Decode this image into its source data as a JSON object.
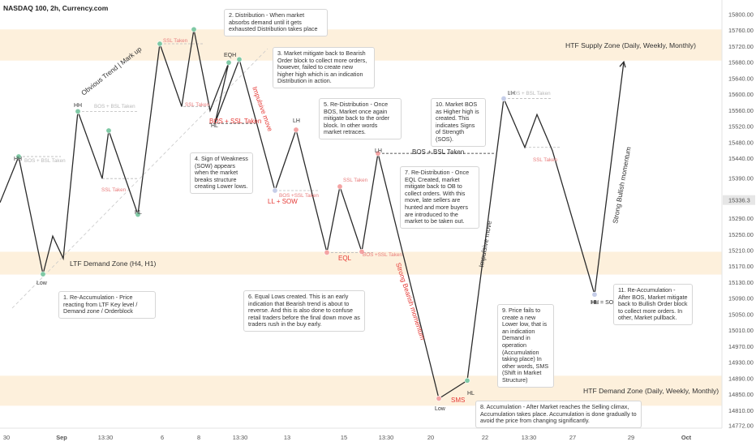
{
  "header": {
    "title": "NASDAQ 100, 2h, Currency.com"
  },
  "colors": {
    "zone_fill": "#fdf0dc",
    "line": "#2b2b2b",
    "green_point": "#7fc9a5",
    "red_point": "#f4a3a3",
    "blue_point": "#c5cde8",
    "red_text": "#e53935",
    "price_tag_bg": "#e6e6e6"
  },
  "chart_data": {
    "type": "line",
    "x_ticks": [
      "30",
      "Sep",
      "13:30",
      "6",
      "8",
      "13:30",
      "13",
      "15",
      "13:30",
      "20",
      "22",
      "13:30",
      "27",
      "29",
      "Oct"
    ],
    "y_ticks": [
      15800.0,
      15760.0,
      15720.0,
      15680.0,
      15640.0,
      15600.0,
      15560.0,
      15520.0,
      15480.0,
      15440.0,
      15390.0,
      15336.3,
      15290.0,
      15250.0,
      15210.0,
      15170.0,
      15130.0,
      15090.0,
      15050.0,
      15010.0,
      14970.0,
      14930.0,
      14890.0,
      14850.0,
      14810.0,
      14772.0
    ],
    "current_price": "15336.3",
    "series": [
      {
        "name": "",
        "points": [
          {
            "t": "30",
            "v": 15330
          },
          {
            "t": "30",
            "v": 15445
          },
          {
            "t": "30",
            "v": 15151
          },
          {
            "t": "30",
            "v": 15246
          },
          {
            "t": "Sep",
            "v": 15190
          },
          {
            "t": "Sep",
            "v": 15558
          },
          {
            "t": "Sep",
            "v": 15390
          },
          {
            "t": "Sep",
            "v": 15510
          },
          {
            "t": "13:30",
            "v": 15300
          },
          {
            "t": "6",
            "v": 15727
          },
          {
            "t": "6",
            "v": 15570
          },
          {
            "t": "8",
            "v": 15763
          },
          {
            "t": "8",
            "v": 15560
          },
          {
            "t": "8",
            "v": 15680
          },
          {
            "t": "8",
            "v": 15528
          },
          {
            "t": "13:30",
            "v": 15688
          },
          {
            "t": "13",
            "v": 15360
          },
          {
            "t": "13",
            "v": 15512
          },
          {
            "t": "15",
            "v": 15205
          },
          {
            "t": "15",
            "v": 15370
          },
          {
            "t": "13:30",
            "v": 15207
          },
          {
            "t": "13:30",
            "v": 15453
          },
          {
            "t": "20",
            "v": 14840
          },
          {
            "t": "20",
            "v": 14885
          },
          {
            "t": "22",
            "v": 15590
          },
          {
            "t": "13:30",
            "v": 15468
          },
          {
            "t": "13:30",
            "v": 15550
          },
          {
            "t": "27",
            "v": 15460
          },
          {
            "t": "27",
            "v": 15100
          },
          {
            "t": "29",
            "v": 15682
          }
        ]
      }
    ],
    "zones": [
      {
        "label": "HTF Supply Zone (Daily, Weekly, Monthly)",
        "from": 15685,
        "to": 15763
      },
      {
        "label": "LTF Demand Zone (H4, H1)",
        "from": 15150,
        "to": 15207
      },
      {
        "label": "HTF Demand Zone (Daily, Weekly, Monthly)",
        "from": 14822,
        "to": 14897
      }
    ],
    "point_labels": [
      "HH",
      "Low",
      "HH",
      "HL",
      "HL",
      "EQH",
      "LH",
      "LH",
      "LH",
      "HH = SOS",
      "HL",
      "Low",
      "HL"
    ],
    "bos_labels": [
      "BOS + SSL Taken",
      "BOS + SSL Taken",
      "LL + SOW",
      "BOS + SSL Taken",
      "SMS"
    ],
    "faint_labels": [
      "BOS + BSL Taken",
      "BOS + BSL Taken",
      "SSL Taken",
      "SSL Taken",
      "SSL Taken",
      "BOS +SSL Taken",
      "SSL Taken",
      "BOS +SSL Taken",
      "BOS + BSL Taken",
      "SSL Taken"
    ],
    "bos_bsl_label": "BOS + BSL Taken",
    "eql_label": "EQL",
    "diagonal_labels": {
      "trend": "Obvious Trend | Mark up",
      "impulsive_red": "Impulsive move",
      "impulsive": "Impulsive move",
      "strong_bearish": "Strong Bearish momentum",
      "strong_bullish": "Strong Bullish momentum"
    }
  },
  "notes": [
    "1. Re-Accumulation - Price reacting from LTF Key level / Demand zone / Orderblock",
    "2. Distribution - When market absorbs demand until it gets exhausted Distribution takes place",
    "3. Market mitigate back to Bearish Order block to collect more orders, however, failed to create new higher high which is an indication Distribution in action.",
    "4. Sign of Weakness (SOW) appears when the market breaks structure creating Lower lows.",
    "5. Re-Distribution - Once BOS, Market once again mitigate back to the order block. In other words market retraces.",
    "6. Equal Lows created. This is an early indication that Bearish trend is about to reverse. And this is also done to confuse retail traders before the final down move as traders rush in the buy early.",
    "7. Re-Distribution - Once EQL Created, market mitigate back to OB to collect orders. With this move, late sellers are hunted and more buyers are introduced to the market to be taken out.",
    "8. Accumulation - After Market reaches the Selling climax, Accumulation takes place. Accumulation is done gradually to avoid the price from changing significantly.",
    "9. Price fails to create a new Lower low, that is an indication Demand in operation (Accumulation taking place) In other words, SMS (Shift in Market Structure)",
    "10. Market BOS as Higher high is created. This indicates Signs of Strength (SOS).",
    "11. Re-Accumulation - After BOS, Market mitigate back to Bullish Order block to collect more orders. In other, Market pullback."
  ]
}
